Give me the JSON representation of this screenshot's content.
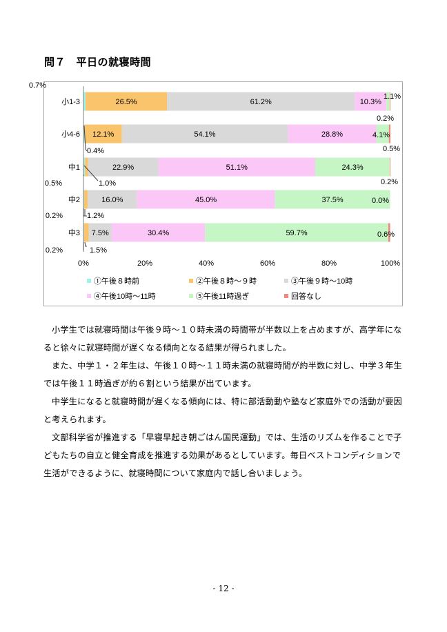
{
  "heading": "問７　平日の就寝時間",
  "chart_data": {
    "type": "bar",
    "stacked": true,
    "orientation": "horizontal",
    "categories": [
      "小1-3",
      "小4-6",
      "中1",
      "中2",
      "中3"
    ],
    "series": [
      {
        "name": "①午後８時前",
        "color": "#9ff0e6",
        "values": [
          0.7,
          0.4,
          0.5,
          0.2,
          0.2
        ]
      },
      {
        "name": "②午後８時～９時",
        "color": "#f9c46b",
        "values": [
          26.5,
          12.1,
          1.0,
          1.2,
          1.5
        ]
      },
      {
        "name": "③午後９時～10時",
        "color": "#d9d9d9",
        "values": [
          61.2,
          54.1,
          22.9,
          16.0,
          7.5
        ]
      },
      {
        "name": "④午後10時～11時",
        "color": "#fbc7f6",
        "values": [
          10.3,
          28.8,
          51.1,
          45.0,
          30.4
        ]
      },
      {
        "name": "⑤午後11時過ぎ",
        "color": "#c6f5c6",
        "values": [
          1.1,
          4.1,
          24.3,
          37.5,
          59.7
        ]
      },
      {
        "name": "回答なし",
        "color": "#f2877d",
        "values": [
          0.2,
          0.5,
          0.2,
          0.0,
          0.6
        ]
      }
    ],
    "xlim": [
      0,
      100
    ],
    "xticks": [
      "0%",
      "20%",
      "40%",
      "60%",
      "80%",
      "100%"
    ],
    "grid": false,
    "legend": "bottom"
  },
  "paragraphs": [
    "小学生では就寝時間は午後９時～１０時未満の時間帯が半数以上を占めますが、高学年になると徐々に就寝時間が遅くなる傾向となる結果が得られました。",
    "また、中学１・２年生は、午後１０時～１１時未満の就寝時間が約半数に対し、中学３年生では午後１１時過ぎが約６割という結果が出ています。",
    "中学生になると就寝時間が遅くなる傾向には、特に部活動動や塾など家庭外での活動が要因と考えられます。",
    "文部科学省が推進する「早寝早起き朝ごはん国民運動」では、生活のリズムを作ることで子どもたちの自立と健全育成を推進する効果があるとしています。毎日ベストコンディションで生活ができるように、就寝時間について家庭内で話し合いましょう。"
  ],
  "page_number": "- 12 -"
}
